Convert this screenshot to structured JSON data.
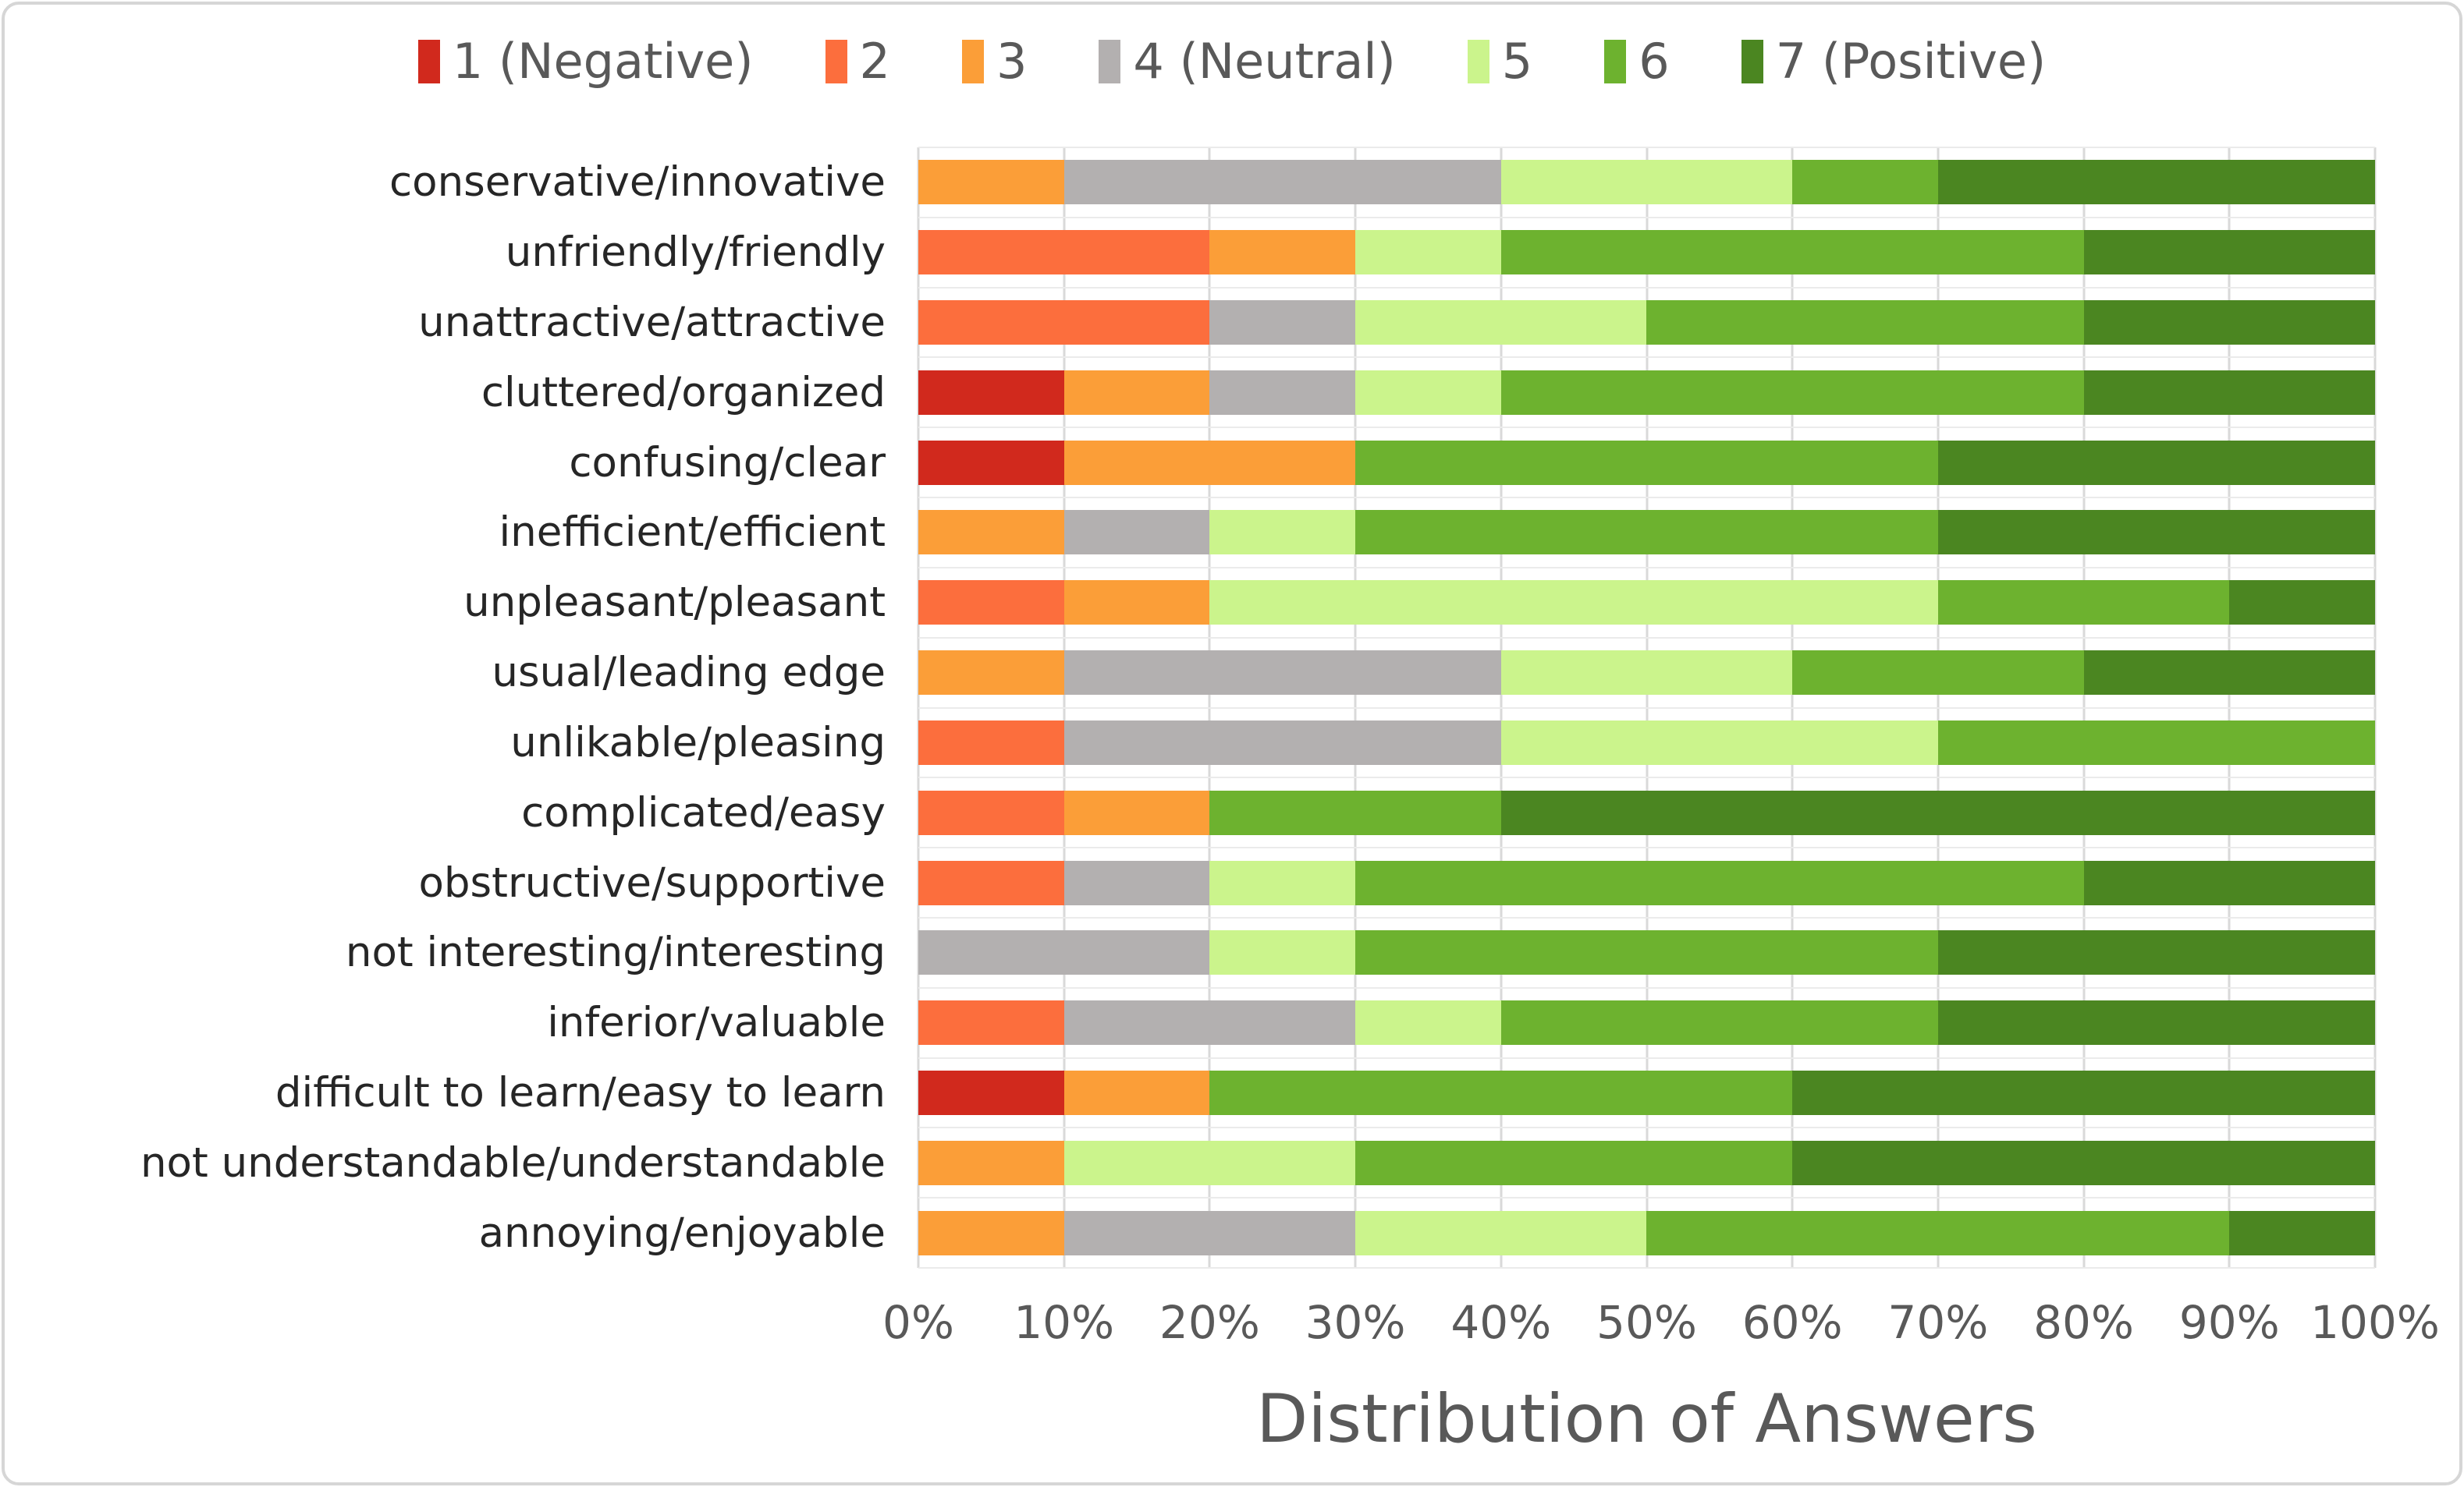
{
  "chart_data": {
    "type": "bar",
    "orientation": "horizontal",
    "stacked": true,
    "unit": "percent",
    "xlabel": "Distribution of Answers",
    "xlim": [
      0,
      100
    ],
    "x_ticks": [
      "0%",
      "10%",
      "20%",
      "30%",
      "40%",
      "50%",
      "60%",
      "70%",
      "80%",
      "90%",
      "100%"
    ],
    "grid": "vertical",
    "legend_position": "top",
    "categories": [
      "conservative/innovative",
      "unfriendly/friendly",
      "unattractive/attractive",
      "cluttered/organized",
      "confusing/clear",
      "inefficient/efficient",
      "unpleasant/pleasant",
      "usual/leading edge",
      "unlikable/pleasing",
      "complicated/easy",
      "obstructive/supportive",
      "not interesting/interesting",
      "inferior/valuable",
      "difficult to learn/easy to learn",
      "not understandable/understandable",
      "annoying/enjoyable"
    ],
    "series": [
      {
        "name": "1 (Negative)",
        "color": "#d1291d",
        "values": [
          0,
          0,
          0,
          10,
          10,
          0,
          0,
          0,
          0,
          0,
          0,
          0,
          0,
          10,
          0,
          0
        ]
      },
      {
        "name": "2",
        "color": "#fc6e3d",
        "values": [
          0,
          20,
          20,
          0,
          0,
          0,
          10,
          0,
          10,
          10,
          10,
          0,
          10,
          0,
          0,
          0
        ]
      },
      {
        "name": "3",
        "color": "#fb9e38",
        "values": [
          10,
          10,
          0,
          10,
          20,
          10,
          10,
          10,
          0,
          10,
          0,
          0,
          0,
          10,
          10,
          10
        ]
      },
      {
        "name": "4 (Neutral)",
        "color": "#b3b0b0",
        "values": [
          30,
          0,
          10,
          10,
          0,
          10,
          0,
          30,
          30,
          0,
          10,
          20,
          20,
          0,
          0,
          20
        ]
      },
      {
        "name": "5",
        "color": "#cbf48c",
        "values": [
          20,
          10,
          20,
          10,
          0,
          10,
          50,
          20,
          30,
          0,
          10,
          10,
          10,
          0,
          20,
          20
        ]
      },
      {
        "name": "6",
        "color": "#6db22f",
        "values": [
          10,
          40,
          30,
          40,
          40,
          40,
          20,
          20,
          30,
          20,
          50,
          40,
          30,
          40,
          30,
          40
        ]
      },
      {
        "name": "7 (Positive)",
        "color": "#4b8621",
        "values": [
          30,
          20,
          20,
          20,
          30,
          30,
          10,
          20,
          0,
          60,
          20,
          30,
          30,
          40,
          40,
          10
        ]
      }
    ],
    "colors": {
      "gridline": "#d9d9d9",
      "category_gridline": "#ebebeb",
      "axis_text": "#595959",
      "label_text": "#262626"
    }
  }
}
